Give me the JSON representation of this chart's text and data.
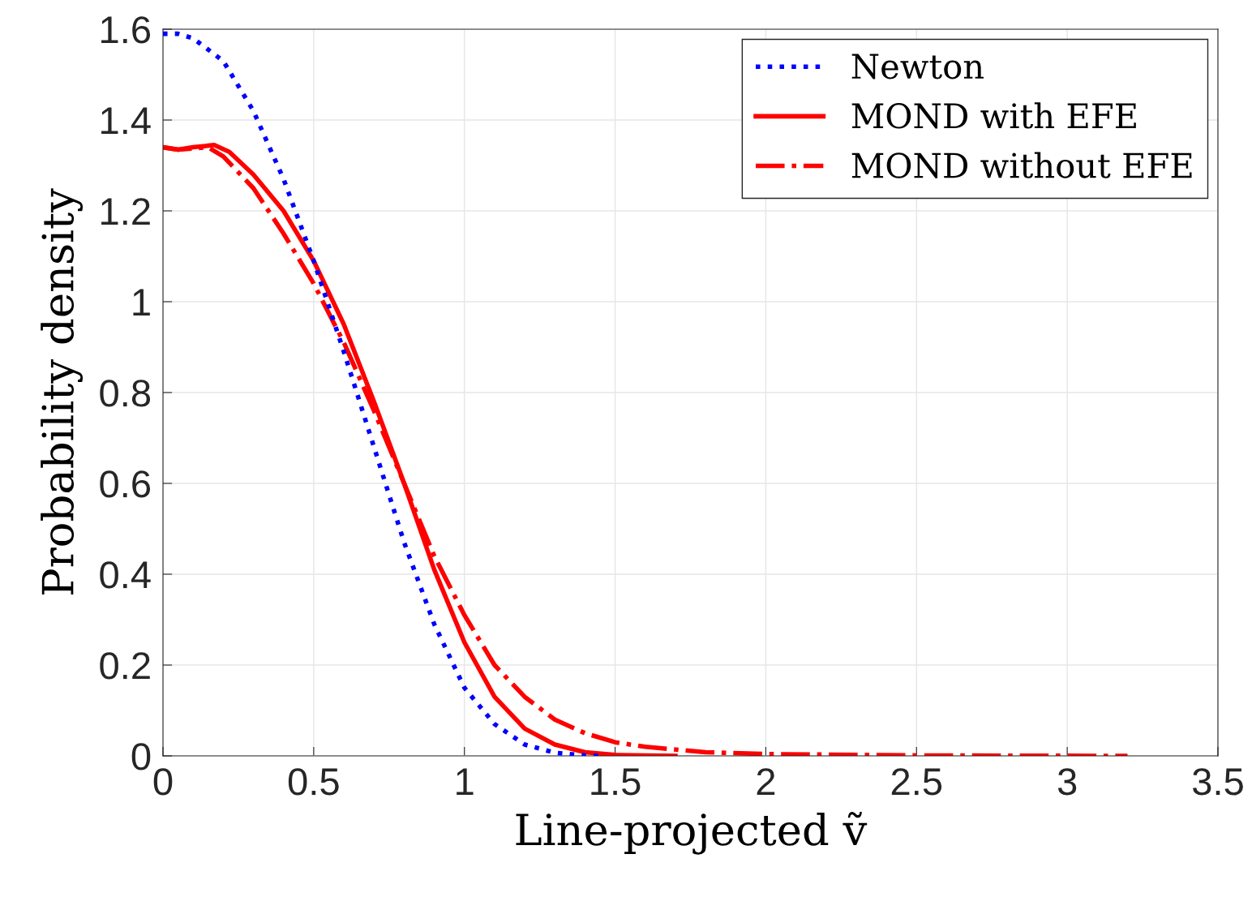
{
  "chart_data": {
    "type": "line",
    "xlabel": "Line-projected ṽ",
    "ylabel": "Probability density",
    "xlim": [
      0,
      3.5
    ],
    "xticks": [
      0,
      0.5,
      1,
      1.5,
      2,
      2.5,
      3,
      3.5
    ],
    "ylim": [
      0,
      1.6
    ],
    "yticks": [
      0,
      0.2,
      0.4,
      0.6,
      0.8,
      1,
      1.2,
      1.4,
      1.6
    ],
    "grid": true,
    "legend": "top right",
    "series": [
      {
        "name": "Newton",
        "color": "#0000ff",
        "line_style": "dotted",
        "x": [
          0,
          0.05,
          0.1,
          0.2,
          0.3,
          0.4,
          0.5,
          0.6,
          0.7,
          0.8,
          0.9,
          1.0,
          1.1,
          1.2,
          1.3,
          1.4,
          1.45
        ],
        "values": [
          1.59,
          1.59,
          1.58,
          1.53,
          1.42,
          1.27,
          1.09,
          0.89,
          0.68,
          0.47,
          0.29,
          0.15,
          0.07,
          0.025,
          0.007,
          0.001,
          0
        ]
      },
      {
        "name": "MOND with EFE",
        "color": "#ff0000",
        "line_style": "solid",
        "x": [
          0,
          0.05,
          0.1,
          0.17,
          0.22,
          0.3,
          0.4,
          0.5,
          0.6,
          0.7,
          0.8,
          0.9,
          1.0,
          1.1,
          1.2,
          1.3,
          1.4,
          1.5,
          1.7
        ],
        "values": [
          1.34,
          1.335,
          1.34,
          1.345,
          1.33,
          1.28,
          1.2,
          1.09,
          0.95,
          0.78,
          0.6,
          0.41,
          0.25,
          0.13,
          0.06,
          0.025,
          0.008,
          0.002,
          0
        ]
      },
      {
        "name": "MOND without EFE",
        "color": "#ff0000",
        "line_style": "dashdot",
        "x": [
          0,
          0.05,
          0.15,
          0.2,
          0.3,
          0.4,
          0.5,
          0.6,
          0.7,
          0.8,
          0.9,
          1.0,
          1.1,
          1.2,
          1.3,
          1.4,
          1.5,
          1.6,
          1.8,
          2.0,
          2.5,
          3.2
        ],
        "values": [
          1.34,
          1.335,
          1.34,
          1.32,
          1.25,
          1.15,
          1.04,
          0.91,
          0.76,
          0.6,
          0.44,
          0.31,
          0.2,
          0.13,
          0.08,
          0.05,
          0.03,
          0.02,
          0.008,
          0.004,
          0.001,
          0
        ]
      }
    ]
  }
}
